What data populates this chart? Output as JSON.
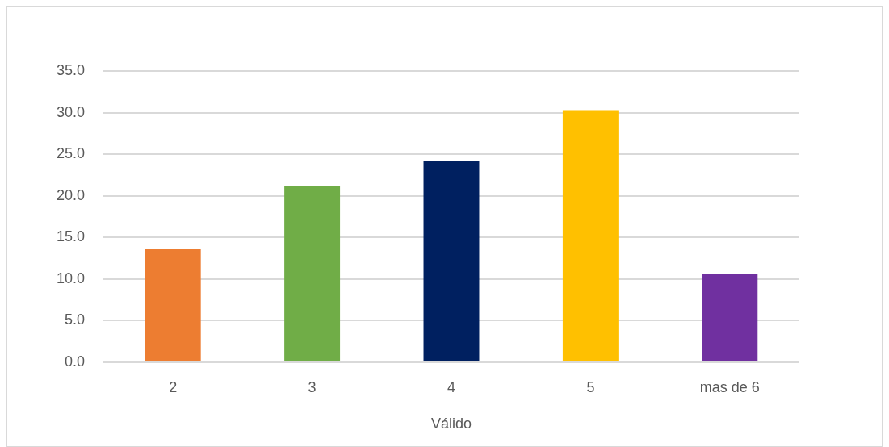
{
  "chart_data": {
    "type": "bar",
    "xlabel": "Válido",
    "categories": [
      "2",
      "3",
      "4",
      "5",
      "mas de 6"
    ],
    "values": [
      13.6,
      21.2,
      24.2,
      30.3,
      10.6
    ],
    "colors": [
      "#ed7d31",
      "#70ad47",
      "#002060",
      "#ffc000",
      "#7030a0"
    ],
    "ylim": [
      0,
      35
    ],
    "yticks": [
      {
        "value": 0,
        "label": "0.0"
      },
      {
        "value": 5,
        "label": "5.0"
      },
      {
        "value": 10,
        "label": "10.0"
      },
      {
        "value": 15,
        "label": "15.0"
      },
      {
        "value": 20,
        "label": "20.0"
      },
      {
        "value": 25,
        "label": "25.0"
      },
      {
        "value": 30,
        "label": "30.0"
      },
      {
        "value": 35,
        "label": "35.0"
      }
    ],
    "grid": "y"
  }
}
